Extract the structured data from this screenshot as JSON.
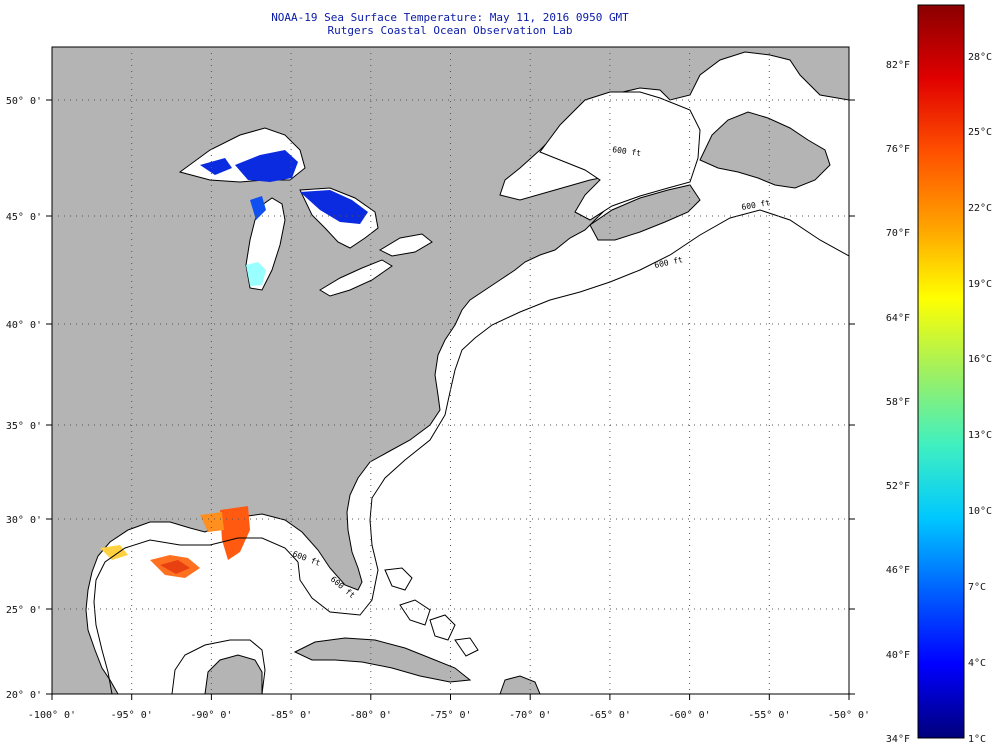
{
  "header": {
    "title": "NOAA-19 Sea Surface Temperature:  May 11, 2016 0950 GMT",
    "subtitle": "Rutgers Coastal Ocean Observation Lab"
  },
  "map": {
    "lon_labels": [
      "-100° 0'",
      "-95° 0'",
      "-90° 0'",
      "-85° 0'",
      "-80° 0'",
      "-75° 0'",
      "-70° 0'",
      "-65° 0'",
      "-60° 0'",
      "-55° 0'",
      "-50° 0'"
    ],
    "lat_labels": [
      "50° 0'",
      "45° 0'",
      "40° 0'",
      "35° 0'",
      "30° 0'",
      "25° 0'",
      "20° 0'"
    ],
    "isobath_labels": [
      "600 ft",
      "600 ft",
      "600 ft",
      "600 ft",
      "600 ft"
    ],
    "colors": {
      "land": "#b4b4b4",
      "ocean": "#ffffff",
      "coast": "#000000",
      "grid": "#555555"
    }
  },
  "colorbar": {
    "fahrenheit_labels": [
      "82°F",
      "76°F",
      "70°F",
      "64°F",
      "58°F",
      "52°F",
      "46°F",
      "40°F",
      "34°F"
    ],
    "celsius_labels": [
      "28°C",
      "25°C",
      "22°C",
      "19°C",
      "16°C",
      "13°C",
      "10°C",
      "7°C",
      "4°C",
      "1°C"
    ],
    "gradient": [
      "#00007a",
      "#0000ff",
      "#0060ff",
      "#00c8ff",
      "#40f0c0",
      "#a0f060",
      "#ffff00",
      "#ffa000",
      "#ff5000",
      "#e00000",
      "#8a0000"
    ]
  }
}
